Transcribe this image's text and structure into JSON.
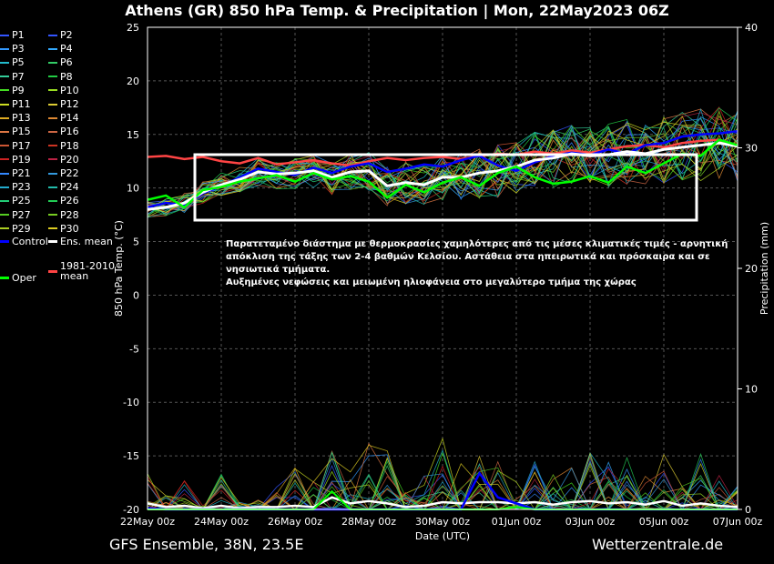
{
  "title": "Athens  (GR)  850 hPa Temp. & Precipitation | Mon, 22May2023 06Z",
  "footer_left": "GFS Ensemble, 38N, 23.5E",
  "footer_right": "Wetterzentrale.de",
  "annotation": [
    "Παρατεταμένο διάστημα με θερμοκρασίες χαμηλότερες από τις μέσες κλιματικές τιμές - αρνητική",
    "απόκλιση της τάξης των 2-4 βαθμών Κελσίου. Αστάθεια στα ηπειρωτικά και πρόσκαιρα και σε",
    "νησιωτικά τμήματα.",
    "Αυξημένες νεφώσεις και μειωμένη ηλιοφάνεια στο μεγαλύτερο τμήμα της χώρας"
  ],
  "legend": [
    {
      "label": "P1",
      "color": "#3355ff"
    },
    {
      "label": "P2",
      "color": "#3355ff"
    },
    {
      "label": "P3",
      "color": "#3399ff"
    },
    {
      "label": "P4",
      "color": "#33aaff"
    },
    {
      "label": "P5",
      "color": "#22bbcc"
    },
    {
      "label": "P6",
      "color": "#33cc66"
    },
    {
      "label": "P7",
      "color": "#33cc99"
    },
    {
      "label": "P8",
      "color": "#22cc44"
    },
    {
      "label": "P9",
      "color": "#44dd22"
    },
    {
      "label": "P10",
      "color": "#99dd22"
    },
    {
      "label": "P11",
      "color": "#ccdd22"
    },
    {
      "label": "P12",
      "color": "#ddcc33"
    },
    {
      "label": "P13",
      "color": "#ddaa22"
    },
    {
      "label": "P14",
      "color": "#dd8833"
    },
    {
      "label": "P15",
      "color": "#dd7744"
    },
    {
      "label": "P16",
      "color": "#cc6644"
    },
    {
      "label": "P17",
      "color": "#cc5533"
    },
    {
      "label": "P18",
      "color": "#cc3322"
    },
    {
      "label": "P19",
      "color": "#cc2222"
    },
    {
      "label": "P20",
      "color": "#bb2244"
    },
    {
      "label": "P21",
      "color": "#3388ff"
    },
    {
      "label": "P22",
      "color": "#3399dd"
    },
    {
      "label": "P23",
      "color": "#22aacc"
    },
    {
      "label": "P24",
      "color": "#22bbaa"
    },
    {
      "label": "P25",
      "color": "#22cc77"
    },
    {
      "label": "P26",
      "color": "#22cc55"
    },
    {
      "label": "P27",
      "color": "#55cc22"
    },
    {
      "label": "P28",
      "color": "#77cc22"
    },
    {
      "label": "P29",
      "color": "#aacc22"
    },
    {
      "label": "P30",
      "color": "#ddcc22"
    },
    {
      "label": "Control",
      "color": "#0000ff"
    },
    {
      "label": "Ens. mean",
      "color": "#ffffff"
    },
    {
      "label": "1981-2010 mean",
      "color": "#ff4444"
    },
    {
      "label": "Oper",
      "color": "#00ff00"
    }
  ],
  "chart_data": {
    "type": "line",
    "title": "Athens  (GR)  850 hPa Temp. & Precipitation | Mon, 22May2023 06Z",
    "xlabel": "Date (UTC)",
    "ylabel": "850 hPa Temp. (°C)",
    "y2label": "Precipitation (mm)",
    "ylim": [
      -20,
      25
    ],
    "y2lim": [
      0,
      40
    ],
    "yticks": [
      -20,
      -15,
      -10,
      -5,
      0,
      5,
      10,
      15,
      20,
      25
    ],
    "y2ticks": [
      0,
      10,
      20,
      30,
      40
    ],
    "grid": true,
    "xlim": [
      "22May 00z",
      "07Jun 00z"
    ],
    "x_tick_labels": [
      "22May 00z",
      "24May 00z",
      "26May 00z",
      "28May 00z",
      "30May 00z",
      "01Jun 00z",
      "03Jun 00z",
      "05Jun 00z",
      "07Jun 00z"
    ],
    "x_tick_days": [
      0,
      2,
      4,
      6,
      8,
      10,
      12,
      14,
      16
    ],
    "series": [
      {
        "name": "1981-2010 mean",
        "color": "#ff4444",
        "days": [
          0,
          0.5,
          1,
          1.5,
          2,
          2.5,
          3,
          3.5,
          4,
          4.5,
          5,
          5.5,
          6,
          6.5,
          7,
          7.5,
          8,
          8.5,
          9,
          9.5,
          10,
          10.5,
          11,
          11.5,
          12,
          12.5,
          13,
          13.5,
          14,
          14.5,
          15,
          15.5,
          16
        ],
        "values": [
          12.9,
          13.0,
          12.7,
          12.9,
          12.5,
          12.3,
          12.8,
          12.2,
          12.4,
          12.6,
          12.3,
          12.1,
          12.5,
          12.8,
          12.6,
          12.8,
          12.9,
          12.7,
          13.0,
          13.2,
          13.1,
          13.4,
          13.2,
          13.5,
          13.3,
          13.6,
          13.9,
          14.0,
          13.8,
          14.2,
          14.4,
          14.5,
          14.0
        ]
      },
      {
        "name": "Control",
        "color": "#0000ff",
        "days": [
          0,
          0.5,
          1,
          1.5,
          2,
          2.5,
          3,
          3.5,
          4,
          4.5,
          5,
          5.5,
          6,
          6.5,
          7,
          7.5,
          8,
          8.5,
          9,
          9.5,
          10,
          10.5,
          11,
          11.5,
          12,
          12.5,
          13,
          13.5,
          14,
          14.5,
          15,
          15.5,
          16
        ],
        "values": [
          8.2,
          8.6,
          8.4,
          9.5,
          10.2,
          11.0,
          11.8,
          11.5,
          11.2,
          11.9,
          11.4,
          12.0,
          12.3,
          11.5,
          11.8,
          12.2,
          12.0,
          12.6,
          13.0,
          12.1,
          11.6,
          12.4,
          13.0,
          13.3,
          13.1,
          13.6,
          13.2,
          14.0,
          14.2,
          14.8,
          15.0,
          15.1,
          15.3
        ]
      },
      {
        "name": "Ens. mean",
        "color": "#ffffff",
        "days": [
          0,
          0.5,
          1,
          1.5,
          2,
          2.5,
          3,
          3.5,
          4,
          4.5,
          5,
          5.5,
          6,
          6.5,
          7,
          7.5,
          8,
          8.5,
          9,
          9.5,
          10,
          10.5,
          11,
          11.5,
          12,
          12.5,
          13,
          13.5,
          14,
          14.5,
          15,
          15.5,
          16
        ],
        "values": [
          8.0,
          8.2,
          8.6,
          9.6,
          10.3,
          10.8,
          11.5,
          11.3,
          11.4,
          11.6,
          11.0,
          11.5,
          11.6,
          10.2,
          10.5,
          10.3,
          11.0,
          11.0,
          11.4,
          11.6,
          12.0,
          12.6,
          12.8,
          13.2,
          13.0,
          13.1,
          13.4,
          13.2,
          13.6,
          13.8,
          14.0,
          14.2,
          13.9
        ]
      },
      {
        "name": "Oper",
        "color": "#00ff00",
        "days": [
          0,
          0.5,
          1,
          1.5,
          2,
          2.5,
          3,
          3.5,
          4,
          4.5,
          5,
          5.5,
          6,
          6.5,
          7,
          7.5,
          8,
          8.5,
          9,
          9.5,
          10,
          10.5,
          11,
          11.5,
          12,
          12.5,
          13,
          13.5,
          14,
          14.5,
          15,
          15.5,
          16
        ],
        "values": [
          8.9,
          9.3,
          8.2,
          9.8,
          10.1,
          10.6,
          10.9,
          11.2,
          10.6,
          11.4,
          10.8,
          11.1,
          10.6,
          9.1,
          10.3,
          9.6,
          10.5,
          11.0,
          10.2,
          11.4,
          12.0,
          11.0,
          10.4,
          10.6,
          11.1,
          10.5,
          12.0,
          11.4,
          12.3,
          13.2,
          13.0,
          14.5,
          14.0
        ]
      }
    ],
    "precipitation": {
      "unit": "mm",
      "days": [
        0,
        0.5,
        1,
        1.5,
        2,
        2.5,
        3,
        3.5,
        4,
        4.5,
        5,
        5.5,
        6,
        6.5,
        7,
        7.5,
        8,
        8.5,
        9,
        9.5,
        10,
        10.5,
        11,
        11.5,
        12,
        12.5,
        13,
        13.5,
        14,
        14.5,
        15,
        15.5,
        16
      ],
      "max": [
        3.0,
        1.2,
        3.0,
        0.5,
        3.0,
        0.6,
        0.8,
        2.0,
        3.5,
        2.5,
        6.0,
        3.5,
        6.0,
        5.0,
        1.5,
        3.0,
        6.0,
        4.0,
        5.0,
        4.0,
        2.5,
        4.0,
        3.0,
        4.5,
        6.0,
        4.0,
        4.5,
        3.0,
        5.0,
        2.0,
        5.0,
        3.0,
        2.0
      ],
      "control": [
        0.1,
        0,
        0,
        0,
        0,
        0,
        0,
        0,
        0,
        0,
        0,
        0,
        0,
        0,
        0,
        0,
        0,
        0,
        3.0,
        1.0,
        0.5,
        0,
        0,
        0,
        0,
        0,
        0,
        0,
        0,
        0,
        0,
        0,
        0
      ],
      "ens_mean": [
        0.5,
        0.2,
        0.3,
        0.1,
        0.3,
        0.1,
        0.2,
        0.2,
        0.3,
        0.2,
        1.0,
        0.5,
        0.7,
        0.5,
        0.2,
        0.3,
        0.6,
        0.5,
        0.6,
        0.6,
        0.5,
        0.6,
        0.4,
        0.6,
        0.7,
        0.5,
        0.6,
        0.4,
        0.7,
        0.3,
        0.5,
        0.3,
        0.2
      ],
      "oper": [
        0,
        0,
        0,
        0,
        0,
        0,
        0,
        0,
        0,
        0,
        1.5,
        0,
        0,
        0,
        0,
        0,
        0,
        0,
        0,
        0,
        0.2,
        0,
        0,
        0,
        0,
        0,
        0,
        0,
        0,
        0,
        0,
        0,
        0
      ]
    }
  }
}
